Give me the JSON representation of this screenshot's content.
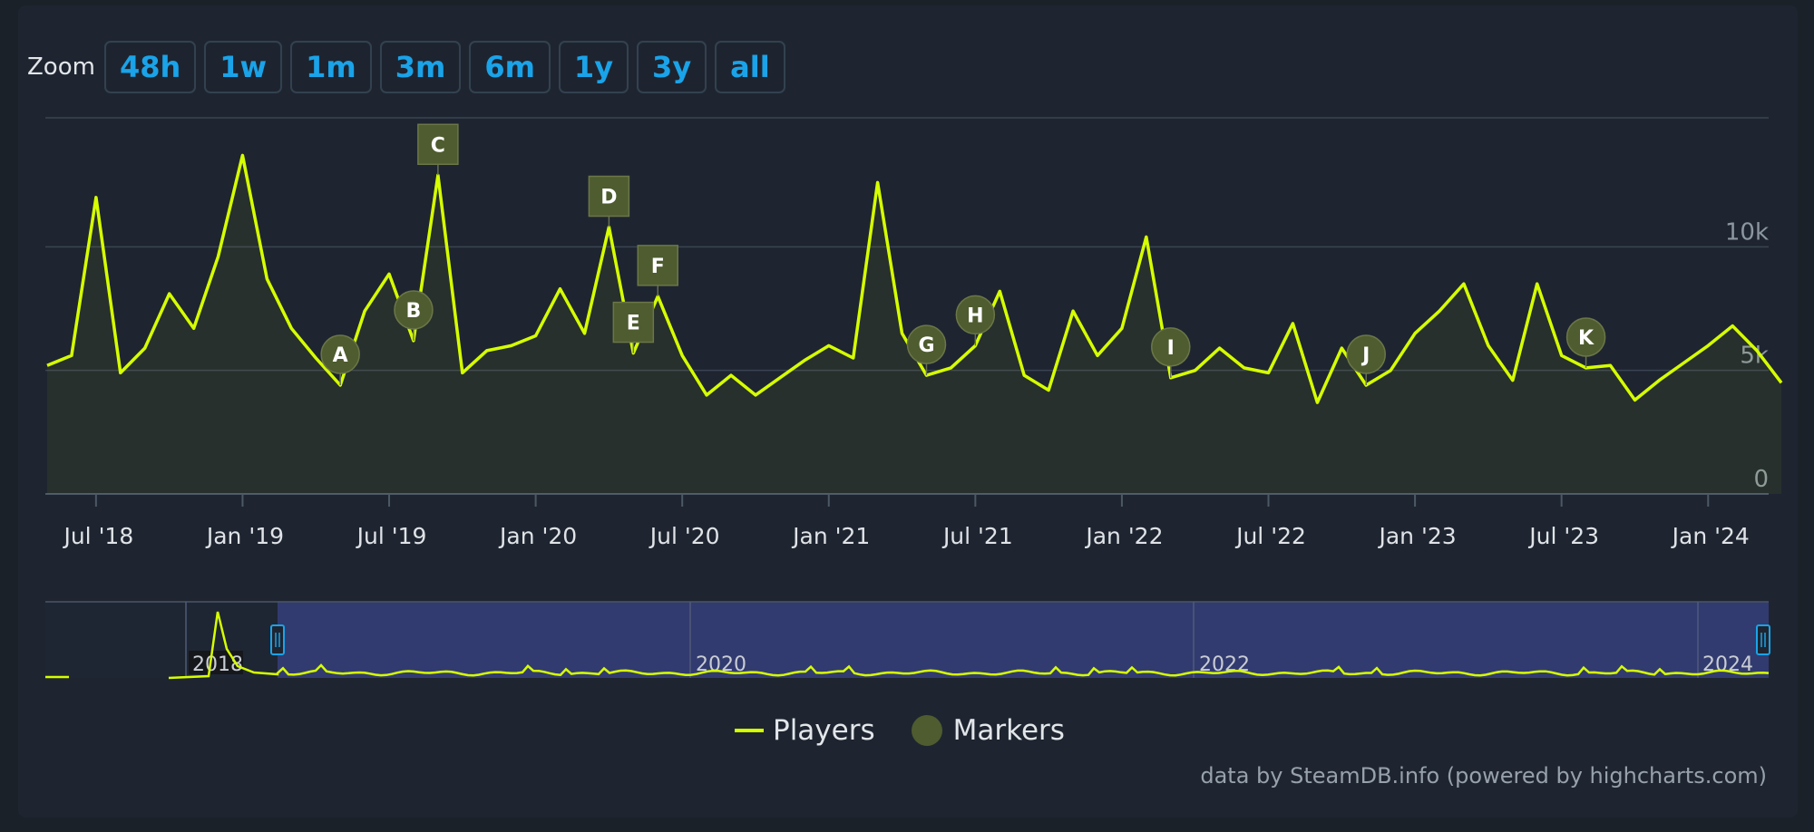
{
  "zoom": {
    "label": "Zoom",
    "buttons": [
      "48h",
      "1w",
      "1m",
      "3m",
      "6m",
      "1y",
      "3y",
      "all"
    ]
  },
  "legend": {
    "players": "Players",
    "markers": "Markers"
  },
  "credit": "data by SteamDB.info (powered by highcharts.com)",
  "colors": {
    "line": "#d6ff00",
    "marker_fill": "#4e5c2f",
    "navigator_fill": "#36407a",
    "grid": "#3a4452",
    "zoom_text": "#1aa3e8"
  },
  "chart_data": {
    "type": "line",
    "series": [
      {
        "name": "Players",
        "x": [
          "2018-05",
          "2018-06",
          "2018-07",
          "2018-08",
          "2018-09",
          "2018-10",
          "2018-11",
          "2018-12",
          "2019-01",
          "2019-02",
          "2019-03",
          "2019-04",
          "2019-05",
          "2019-06",
          "2019-07",
          "2019-08",
          "2019-09",
          "2019-10",
          "2019-11",
          "2019-12",
          "2020-01",
          "2020-02",
          "2020-03",
          "2020-04",
          "2020-05",
          "2020-06",
          "2020-07",
          "2020-08",
          "2020-09",
          "2020-10",
          "2020-11",
          "2020-12",
          "2021-01",
          "2021-02",
          "2021-03",
          "2021-04",
          "2021-05",
          "2021-06",
          "2021-07",
          "2021-08",
          "2021-09",
          "2021-10",
          "2021-11",
          "2021-12",
          "2022-01",
          "2022-02",
          "2022-03",
          "2022-04",
          "2022-05",
          "2022-06",
          "2022-07",
          "2022-08",
          "2022-09",
          "2022-10",
          "2022-11",
          "2022-12",
          "2023-01",
          "2023-02",
          "2023-03",
          "2023-04",
          "2023-05",
          "2023-06",
          "2023-07",
          "2023-08",
          "2023-09",
          "2023-10",
          "2023-11",
          "2023-12",
          "2024-01",
          "2024-02",
          "2024-03",
          "2024-04"
        ],
        "values": [
          5200,
          5600,
          12000,
          4900,
          5900,
          8100,
          6700,
          9600,
          13700,
          8700,
          6700,
          5500,
          4400,
          7400,
          8900,
          6200,
          12900,
          4900,
          5800,
          6000,
          6400,
          8300,
          6500,
          10800,
          5700,
          8000,
          5600,
          4000,
          4800,
          4000,
          4700,
          5400,
          6000,
          5500,
          12600,
          6500,
          4800,
          5100,
          6000,
          8200,
          4800,
          4200,
          7400,
          5600,
          6700,
          10400,
          4700,
          5000,
          5900,
          5100,
          4900,
          6900,
          3700,
          5900,
          4400,
          5000,
          6500,
          7400,
          8500,
          6000,
          4600,
          8500,
          5600,
          5100,
          5200,
          3800,
          4600,
          5300,
          6000,
          6800,
          5800,
          4500
        ]
      }
    ],
    "markers": [
      {
        "label": "A",
        "x": "2019-05",
        "shape": "circle"
      },
      {
        "label": "B",
        "x": "2019-08",
        "shape": "circle"
      },
      {
        "label": "C",
        "x": "2019-09",
        "shape": "square"
      },
      {
        "label": "D",
        "x": "2020-04",
        "shape": "square"
      },
      {
        "label": "E",
        "x": "2020-05",
        "shape": "square"
      },
      {
        "label": "F",
        "x": "2020-06",
        "shape": "square"
      },
      {
        "label": "G",
        "x": "2021-05",
        "shape": "circle"
      },
      {
        "label": "H",
        "x": "2021-07",
        "shape": "circle"
      },
      {
        "label": "I",
        "x": "2022-03",
        "shape": "circle"
      },
      {
        "label": "J",
        "x": "2022-11",
        "shape": "circle"
      },
      {
        "label": "K",
        "x": "2023-08",
        "shape": "circle"
      }
    ],
    "x_ticks": [
      "Jul '18",
      "Jan '19",
      "Jul '19",
      "Jan '20",
      "Jul '20",
      "Jan '21",
      "Jul '21",
      "Jan '22",
      "Jul '22",
      "Jan '23",
      "Jul '23",
      "Jan '24"
    ],
    "y_ticks": [
      0,
      5000,
      10000
    ],
    "y_tick_labels": [
      "0",
      "5k",
      "10k"
    ],
    "ylim": [
      0,
      15000
    ],
    "navigator": {
      "year_labels": [
        "2018",
        "2020",
        "2022",
        "2024"
      ]
    },
    "legend_position": "bottom-center"
  }
}
